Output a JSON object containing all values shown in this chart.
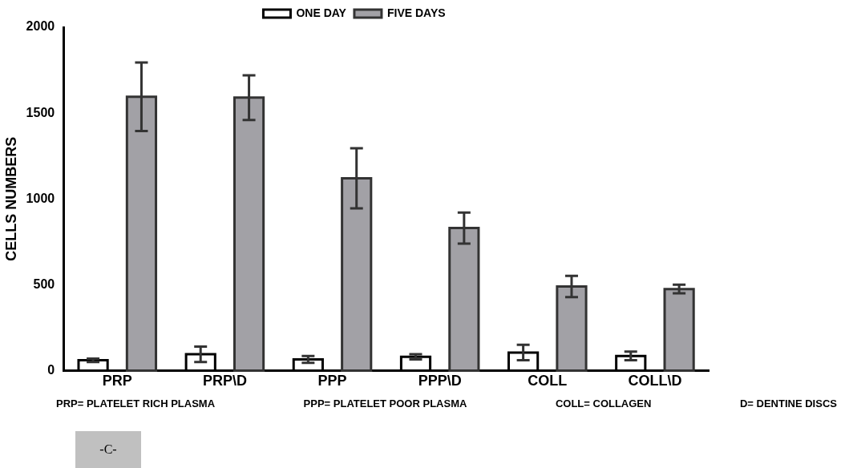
{
  "chart_data": {
    "type": "bar",
    "ylabel": "CELLS NUMBERS",
    "categories": [
      "PRP",
      "PRP\\D",
      "PPP",
      "PPP\\D",
      "COLL",
      "COLL\\D"
    ],
    "series": [
      {
        "name": "ONE DAY",
        "color": "#000000",
        "values": [
          60,
          95,
          65,
          80,
          105,
          85
        ],
        "errors": [
          10,
          45,
          20,
          15,
          45,
          25
        ]
      },
      {
        "name": "FIVE DAYS",
        "color": "#a2a1a6",
        "values": [
          1595,
          1590,
          1120,
          830,
          490,
          475
        ],
        "errors": [
          200,
          130,
          175,
          90,
          62,
          25
        ]
      }
    ],
    "ylim": [
      0,
      2000
    ],
    "yticks": [
      0,
      500,
      1000,
      1500,
      2000
    ],
    "grid": false,
    "legend": "top",
    "annotations": [
      "PRP= PLATELET RICH PLASMA",
      "PPP= PLATELET POOR PLASMA",
      "COLL= COLLAGEN",
      "D= DENTINE DISCS",
      "-C-"
    ]
  }
}
